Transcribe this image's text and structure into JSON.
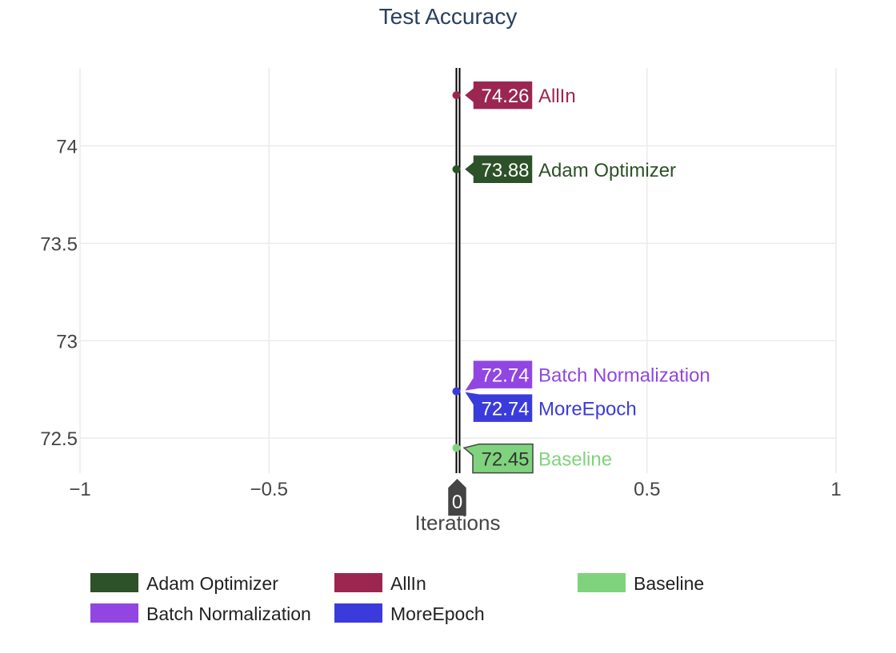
{
  "chart_data": {
    "type": "scatter",
    "title": "Test Accuracy",
    "xlabel": "Iterations",
    "ylabel": "",
    "xlim": [
      -1,
      1
    ],
    "ylim": [
      72.32,
      74.4
    ],
    "x_ticks": [
      -1,
      -0.5,
      0,
      0.5,
      1
    ],
    "x_tick_labels": [
      "−1",
      "−0.5",
      "0",
      "0.5",
      "1"
    ],
    "y_ticks": [
      72.5,
      73,
      73.5,
      74
    ],
    "y_tick_labels": [
      "72.5",
      "73",
      "73.5",
      "74"
    ],
    "grid": true,
    "legend_position": "bottom",
    "hover_x_label": "0",
    "series": [
      {
        "name": "Adam Optimizer",
        "x": [
          0
        ],
        "y": [
          73.88
        ],
        "label": "73.88",
        "color": "#2d5128",
        "text_color": "#ffffff"
      },
      {
        "name": "AllIn",
        "x": [
          0
        ],
        "y": [
          74.26
        ],
        "label": "74.26",
        "color": "#9b2750",
        "text_color": "#ffffff"
      },
      {
        "name": "Baseline",
        "x": [
          0
        ],
        "y": [
          72.45
        ],
        "label": "72.45",
        "color": "#7fd37d",
        "text_color": "#333333"
      },
      {
        "name": "Batch Normalization",
        "x": [
          0
        ],
        "y": [
          72.74
        ],
        "label": "72.74",
        "color": "#9146e2",
        "text_color": "#ffffff"
      },
      {
        "name": "MoreEpoch",
        "x": [
          0
        ],
        "y": [
          72.74
        ],
        "label": "72.74",
        "color": "#3b3bdc",
        "text_color": "#ffffff"
      }
    ]
  }
}
